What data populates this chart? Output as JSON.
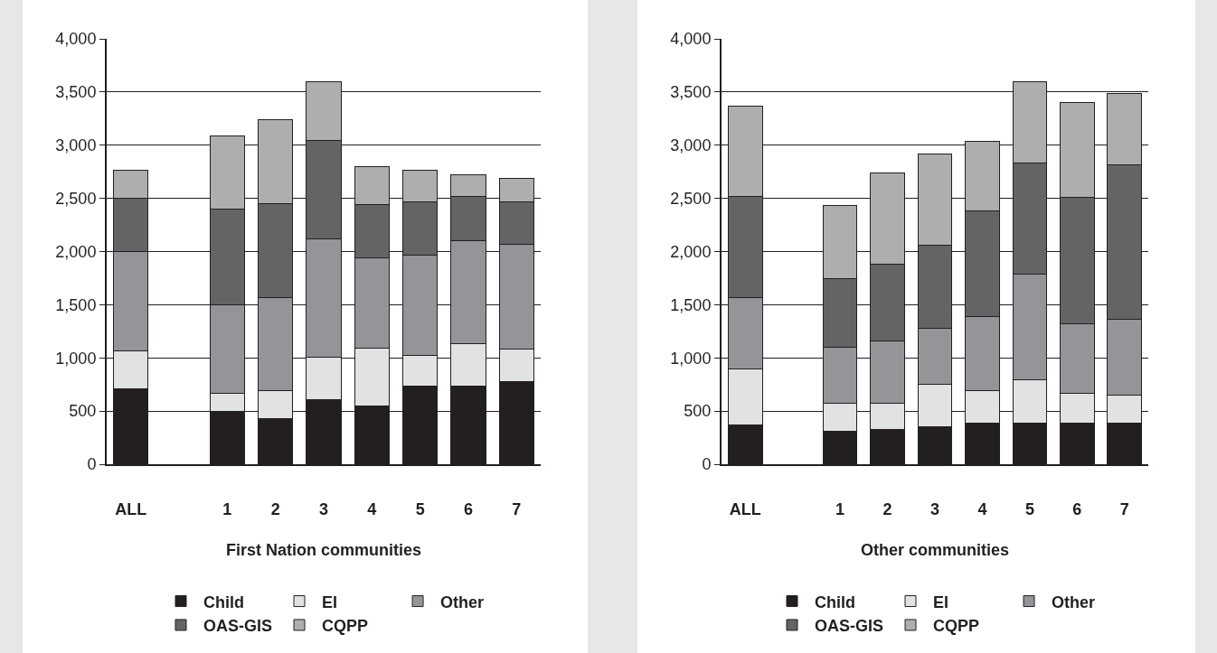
{
  "chart_data": [
    {
      "type": "bar",
      "stacked": true,
      "xlabel": "First Nation communities",
      "categories": [
        "ALL",
        null,
        "1",
        "2",
        "3",
        "4",
        "5",
        "6",
        "7"
      ],
      "ylim": [
        0,
        4000
      ],
      "yticks": [
        0,
        {
          "value": 500,
          "label": "500"
        },
        {
          "value": 1000,
          "label": "1,000"
        },
        {
          "value": 1500,
          "label": "1,500"
        },
        {
          "value": 2000,
          "label": "2,000"
        },
        {
          "value": 2500,
          "label": "2,500"
        },
        {
          "value": 3000,
          "label": "3,000"
        },
        {
          "value": 3500,
          "label": "3,500"
        },
        {
          "value": 4000,
          "label": "4,000"
        }
      ],
      "grid": "y",
      "legend": "bottom",
      "series": [
        {
          "name": "Child",
          "color": "#231f20",
          "values": [
            710,
            null,
            500,
            425,
            605,
            550,
            735,
            735,
            775
          ]
        },
        {
          "name": "EI",
          "color": "#e1e2e3",
          "values": [
            355,
            null,
            165,
            265,
            405,
            545,
            285,
            395,
            310
          ]
        },
        {
          "name": "Other",
          "color": "#939598",
          "values": [
            935,
            null,
            835,
            880,
            1110,
            845,
            945,
            970,
            980
          ]
        },
        {
          "name": "OAS-GIS",
          "color": "#636466",
          "values": [
            500,
            null,
            900,
            880,
            925,
            500,
            500,
            420,
            400
          ]
        },
        {
          "name": "CQPP",
          "color": "#adaeb0",
          "values": [
            265,
            null,
            690,
            790,
            555,
            355,
            300,
            200,
            220
          ]
        }
      ]
    },
    {
      "type": "bar",
      "stacked": true,
      "xlabel": "Other communities",
      "categories": [
        "ALL",
        null,
        "1",
        "2",
        "3",
        "4",
        "5",
        "6",
        "7"
      ],
      "ylim": [
        0,
        4000
      ],
      "yticks": [
        0,
        {
          "value": 500,
          "label": "500"
        },
        {
          "value": 1000,
          "label": "1,000"
        },
        {
          "value": 1500,
          "label": "1,500"
        },
        {
          "value": 2000,
          "label": "2,000"
        },
        {
          "value": 2500,
          "label": "2,500"
        },
        {
          "value": 3000,
          "label": "3,000"
        },
        {
          "value": 3500,
          "label": "3,500"
        },
        {
          "value": 4000,
          "label": "4,000"
        }
      ],
      "grid": "y",
      "legend": "bottom",
      "series": [
        {
          "name": "Child",
          "color": "#231f20",
          "values": [
            370,
            null,
            310,
            325,
            350,
            385,
            385,
            385,
            385
          ]
        },
        {
          "name": "EI",
          "color": "#e1e2e3",
          "values": [
            530,
            null,
            265,
            250,
            405,
            305,
            410,
            285,
            265
          ]
        },
        {
          "name": "Other",
          "color": "#939598",
          "values": [
            670,
            null,
            525,
            585,
            525,
            700,
            990,
            650,
            715
          ]
        },
        {
          "name": "OAS-GIS",
          "color": "#636466",
          "values": [
            950,
            null,
            645,
            720,
            780,
            990,
            1045,
            1190,
            1450
          ]
        },
        {
          "name": "CQPP",
          "color": "#adaeb0",
          "values": [
            850,
            null,
            685,
            855,
            855,
            655,
            765,
            890,
            675
          ]
        }
      ]
    }
  ]
}
